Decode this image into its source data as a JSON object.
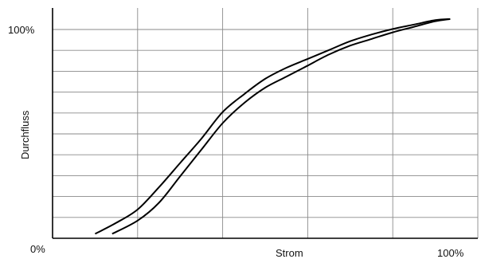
{
  "chart_data": {
    "type": "line",
    "title": "",
    "xlabel": "Strom",
    "ylabel": "Durchfluss",
    "x_tick_labels": {
      "start": "0%",
      "end": "100%"
    },
    "y_tick_labels": {
      "top": "100%"
    },
    "xlim": [
      0,
      100
    ],
    "ylim": [
      -2,
      102
    ],
    "grid": true,
    "grid_divisions": {
      "x": 5,
      "y": 10
    },
    "series": [
      {
        "x": [
          10,
          15,
          20,
          25,
          30,
          35,
          40,
          45,
          50,
          55,
          60,
          65,
          70,
          75,
          80,
          85,
          90,
          93.5
        ],
        "values": [
          0,
          5,
          11,
          21,
          32,
          43,
          55,
          63,
          70,
          75,
          79,
          83,
          87,
          90,
          92.5,
          94.5,
          96.5,
          97
        ]
      },
      {
        "x": [
          14,
          20,
          25,
          30,
          35,
          40,
          45,
          50,
          55,
          60,
          65,
          70,
          75,
          80,
          85,
          90,
          93.5
        ],
        "values": [
          0,
          6,
          14,
          26,
          38,
          50,
          59,
          66,
          71,
          76,
          81,
          85,
          88,
          91,
          93.5,
          96,
          97
        ]
      }
    ],
    "colors": {
      "line": "#000000",
      "grid": "#8a8a8a",
      "axis": "#000000"
    }
  }
}
